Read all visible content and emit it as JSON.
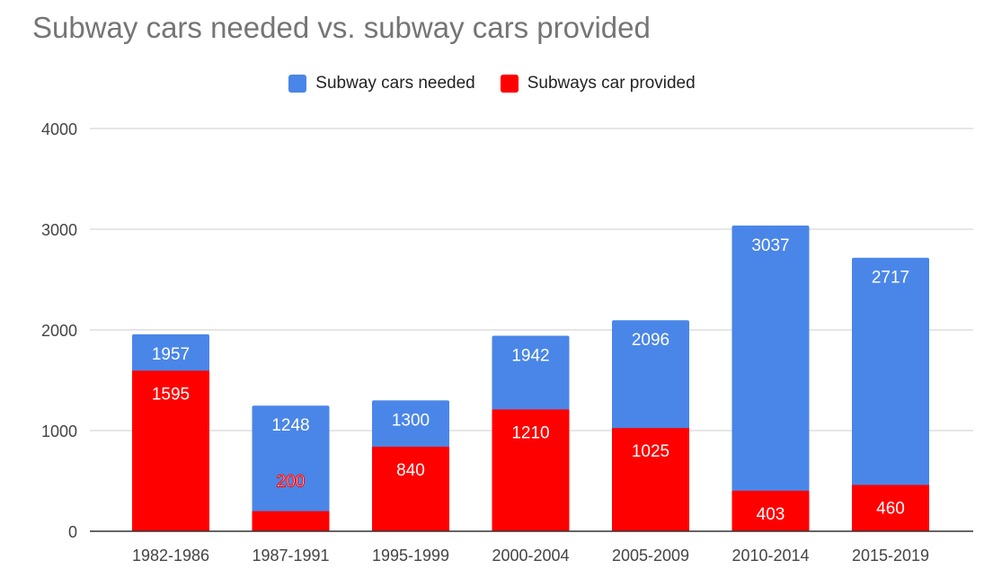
{
  "chart_data": {
    "type": "bar",
    "stacked": true,
    "title": "Subway cars needed vs. subway cars provided",
    "categories": [
      "1982-1986",
      "1987-1991",
      "1995-1999",
      "2000-2004",
      "2005-2009",
      "2010-2014",
      "2015-2019"
    ],
    "series": [
      {
        "name": "Subway cars needed",
        "color": "#4a86e8",
        "values": [
          1957,
          1248,
          1300,
          1942,
          2096,
          3037,
          2717
        ]
      },
      {
        "name": "Subways car provided",
        "color": "#ff0000",
        "values": [
          1595,
          200,
          840,
          1210,
          1025,
          403,
          460
        ]
      }
    ],
    "ylim": [
      0,
      4000
    ],
    "yticks": [
      0,
      1000,
      2000,
      3000,
      4000
    ],
    "grid": true,
    "legend": "top-center"
  }
}
